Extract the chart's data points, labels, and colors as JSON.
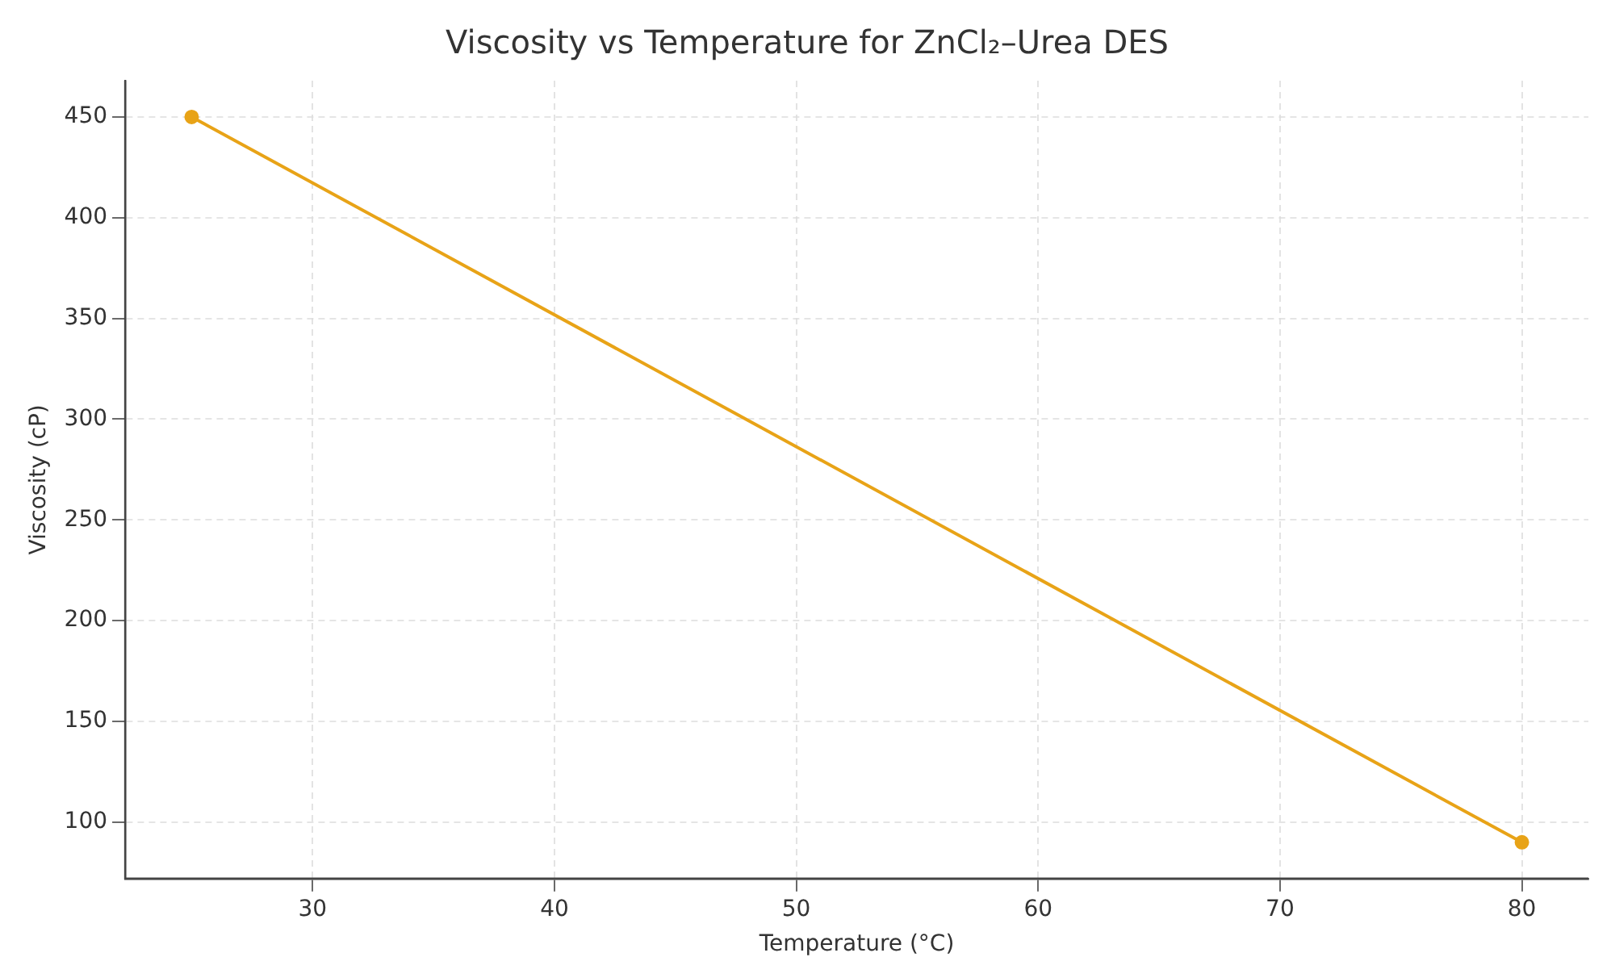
{
  "chart_data": {
    "type": "line",
    "title": "Viscosity vs Temperature for ZnCl₂–Urea DES",
    "xlabel": "Temperature (°C)",
    "ylabel": "Viscosity (cP)",
    "x": [
      25,
      80
    ],
    "series": [
      {
        "color": "#e8a317",
        "values": [
          450,
          90
        ]
      }
    ],
    "xlim": [
      22.25,
      82.75
    ],
    "xticks": [
      30,
      40,
      50,
      60,
      70,
      80
    ],
    "ylim": [
      72,
      468
    ],
    "yticks": [
      100,
      150,
      200,
      250,
      300,
      350,
      400,
      450
    ],
    "grid": true,
    "marker": "circle",
    "line_style": "solid"
  }
}
